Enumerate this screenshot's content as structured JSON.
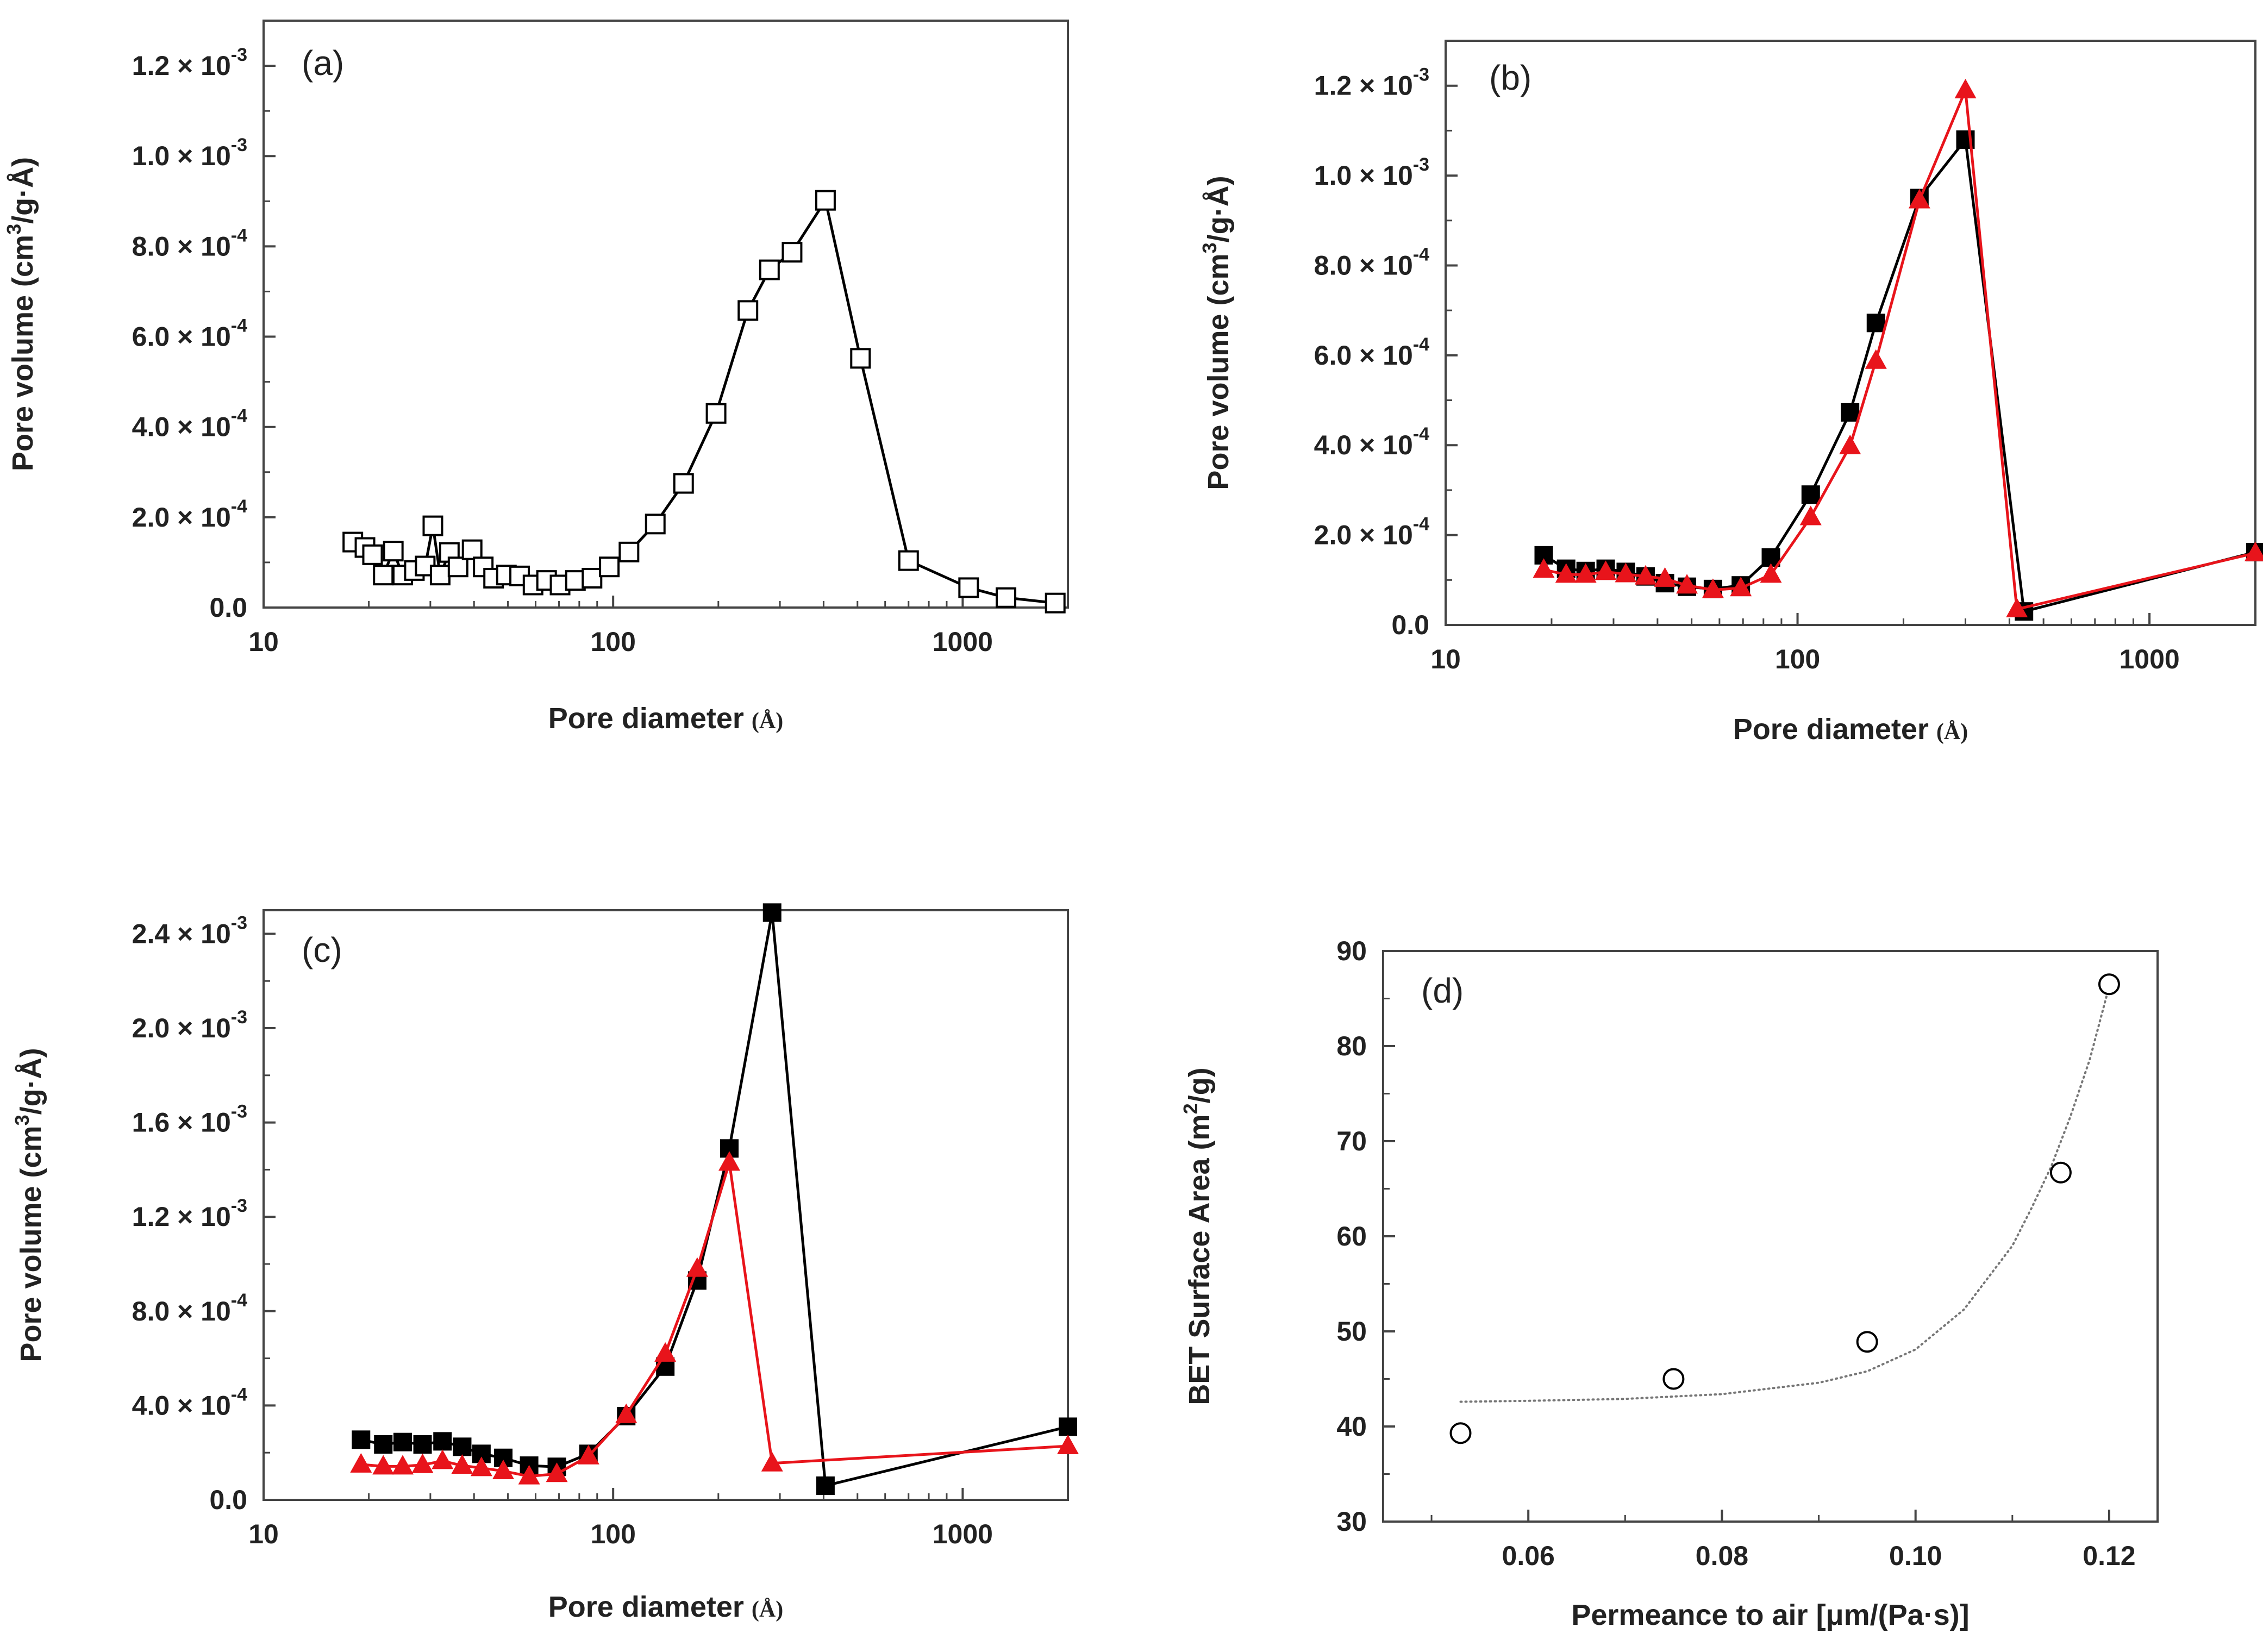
{
  "chart_data": [
    {
      "id": "a",
      "panel_label": "(a)",
      "type": "line",
      "xscale": "log",
      "xlabel": "Pore diameter",
      "xunit": "(Å)",
      "ylabel_pre": "Pore volume (cm",
      "ylabel_sup": "3",
      "ylabel_post": "/g·Å)",
      "xlim": [
        10,
        2000
      ],
      "ylim": [
        0,
        0.0013
      ],
      "xticks": [
        {
          "v": 10,
          "label": "10"
        },
        {
          "v": 100,
          "label": "100"
        },
        {
          "v": 1000,
          "label": "1000"
        }
      ],
      "yticks": [
        {
          "v": 0,
          "mant": "0.0",
          "exp": ""
        },
        {
          "v": 0.0002,
          "mant": "2.0 × 10",
          "exp": "-4"
        },
        {
          "v": 0.0004,
          "mant": "4.0 × 10",
          "exp": "-4"
        },
        {
          "v": 0.0006,
          "mant": "6.0 × 10",
          "exp": "-4"
        },
        {
          "v": 0.0008,
          "mant": "8.0 × 10",
          "exp": "-4"
        },
        {
          "v": 0.001,
          "mant": "1.0 × 10",
          "exp": "-3"
        },
        {
          "v": 0.0012,
          "mant": "1.2 × 10",
          "exp": "-3"
        }
      ],
      "series": [
        {
          "name": "sample",
          "color": "#000000",
          "marker": "square-open",
          "x": [
            18,
            19.5,
            20.5,
            22,
            23.5,
            25,
            27,
            29,
            30.5,
            32,
            34,
            36,
            39.5,
            42.5,
            45.5,
            49.5,
            54,
            59,
            64.5,
            70.5,
            78,
            87,
            97.5,
            111,
            132,
            159,
            197,
            243,
            280,
            325,
            405,
            510,
            700,
            1040,
            1330,
            1840
          ],
          "y": [
            0.000145,
            0.000133,
            0.000117,
            7.2e-05,
            0.000125,
            7.2e-05,
            8.2e-05,
            9.2e-05,
            0.000181,
            7.2e-05,
            0.000122,
            9e-05,
            0.000128,
            9e-05,
            6.5e-05,
            7.2e-05,
            7e-05,
            5e-05,
            6e-05,
            5e-05,
            6e-05,
            6.5e-05,
            9e-05,
            0.000123,
            0.000185,
            0.000275,
            0.00043,
            0.000658,
            0.000748,
            0.000787,
            0.000902,
            0.000552,
            0.000104,
            4.4e-05,
            2.2e-05,
            1e-05
          ]
        }
      ]
    },
    {
      "id": "b",
      "panel_label": "(b)",
      "type": "line",
      "xscale": "log",
      "xlabel": "Pore diameter",
      "xunit": "(Å)",
      "ylabel_pre": "Pore volume (cm",
      "ylabel_sup": "3",
      "ylabel_post": "/g·Å)",
      "xlim": [
        10,
        2000
      ],
      "ylim": [
        0,
        0.0013
      ],
      "xticks": [
        {
          "v": 10,
          "label": "10"
        },
        {
          "v": 100,
          "label": "100"
        },
        {
          "v": 1000,
          "label": "1000"
        }
      ],
      "yticks": [
        {
          "v": 0,
          "mant": "0.0",
          "exp": ""
        },
        {
          "v": 0.0002,
          "mant": "2.0 × 10",
          "exp": "-4"
        },
        {
          "v": 0.0004,
          "mant": "4.0 × 10",
          "exp": "-4"
        },
        {
          "v": 0.0006,
          "mant": "6.0 × 10",
          "exp": "-4"
        },
        {
          "v": 0.0008,
          "mant": "8.0 × 10",
          "exp": "-4"
        },
        {
          "v": 0.001,
          "mant": "1.0 × 10",
          "exp": "-3"
        },
        {
          "v": 0.0012,
          "mant": "1.2 × 10",
          "exp": "-3"
        }
      ],
      "series": [
        {
          "name": "black-squares",
          "color": "#000000",
          "marker": "square",
          "x": [
            19,
            22,
            25,
            28.5,
            32.5,
            37,
            42,
            48.5,
            57.5,
            69,
            84,
            109,
            141,
            167,
            222,
            300,
            440,
            2000
          ],
          "y": [
            0.000155,
            0.000125,
            0.00012,
            0.000125,
            0.000118,
            0.000108,
            9.3e-05,
            8.5e-05,
            8e-05,
            8.8e-05,
            0.00015,
            0.00029,
            0.000473,
            0.000672,
            0.00095,
            0.00108,
            3e-05,
            0.000162
          ]
        },
        {
          "name": "red-triangles",
          "color": "#e8141b",
          "marker": "triangle",
          "x": [
            19,
            22,
            25,
            28.5,
            32.5,
            37,
            42,
            48.5,
            57.5,
            69,
            84,
            109,
            141,
            167,
            222,
            300,
            420,
            2000
          ],
          "y": [
            0.000123,
            0.000112,
            0.000112,
            0.000118,
            0.000113,
            0.000108,
            0.000103,
            8.8e-05,
            7.8e-05,
            8.2e-05,
            0.000112,
            0.00024,
            0.000398,
            0.000588,
            0.000945,
            0.00119,
            3.5e-05,
            0.00016
          ]
        }
      ]
    },
    {
      "id": "c",
      "panel_label": "(c)",
      "type": "line",
      "xscale": "log",
      "xlabel": "Pore diameter",
      "xunit": "(Å)",
      "ylabel_pre": "Pore volume (cm",
      "ylabel_sup": "3",
      "ylabel_post": "/g·Å)",
      "xlim": [
        10,
        2000
      ],
      "ylim": [
        0,
        0.0025
      ],
      "xticks": [
        {
          "v": 10,
          "label": "10"
        },
        {
          "v": 100,
          "label": "100"
        },
        {
          "v": 1000,
          "label": "1000"
        }
      ],
      "yticks": [
        {
          "v": 0,
          "mant": "0.0",
          "exp": ""
        },
        {
          "v": 0.0004,
          "mant": "4.0 × 10",
          "exp": "-4"
        },
        {
          "v": 0.0008,
          "mant": "8.0 × 10",
          "exp": "-4"
        },
        {
          "v": 0.0012,
          "mant": "1.2 × 10",
          "exp": "-3"
        },
        {
          "v": 0.0016,
          "mant": "1.6 × 10",
          "exp": "-3"
        },
        {
          "v": 0.002,
          "mant": "2.0 × 10",
          "exp": "-3"
        },
        {
          "v": 0.0024,
          "mant": "2.4 × 10",
          "exp": "-3"
        }
      ],
      "series": [
        {
          "name": "black-squares",
          "color": "#000000",
          "marker": "square",
          "x": [
            19,
            22,
            25,
            28.5,
            32.5,
            37,
            42,
            48.5,
            57.5,
            69,
            85,
            109,
            141,
            174,
            215,
            285,
            405,
            2000
          ],
          "y": [
            0.000255,
            0.000235,
            0.000245,
            0.000235,
            0.000248,
            0.000225,
            0.000195,
            0.000178,
            0.000145,
            0.00014,
            0.000195,
            0.000355,
            0.000565,
            0.00093,
            0.00149,
            0.00249,
            6e-05,
            0.00031
          ]
        },
        {
          "name": "red-triangles",
          "color": "#e8141b",
          "marker": "triangle",
          "x": [
            19,
            22,
            25,
            28.5,
            32.5,
            37,
            42,
            48.5,
            57.5,
            69,
            85,
            109,
            141,
            174,
            215,
            285,
            2000
          ],
          "y": [
            0.00015,
            0.000142,
            0.000142,
            0.000148,
            0.000165,
            0.000145,
            0.000135,
            0.000122,
            0.0001,
            0.00011,
            0.000185,
            0.00036,
            0.00062,
            0.00098,
            0.00143,
            0.000155,
            0.000228
          ]
        }
      ]
    },
    {
      "id": "d",
      "panel_label": "(d)",
      "type": "scatter",
      "xscale": "linear",
      "xlabel": "Permeance to air [μm/(Pa·s)]",
      "xunit": "",
      "ylabel_pre": "BET Surface Area (m",
      "ylabel_sup": "2",
      "ylabel_post": "/g)",
      "xlim": [
        0.045,
        0.125
      ],
      "ylim": [
        30,
        90
      ],
      "xticks": [
        {
          "v": 0.06,
          "label": "0.06"
        },
        {
          "v": 0.08,
          "label": "0.08"
        },
        {
          "v": 0.1,
          "label": "0.10"
        },
        {
          "v": 0.12,
          "label": "0.12"
        }
      ],
      "yticks": [
        {
          "v": 30,
          "mant": "30",
          "exp": ""
        },
        {
          "v": 40,
          "mant": "40",
          "exp": ""
        },
        {
          "v": 50,
          "mant": "50",
          "exp": ""
        },
        {
          "v": 60,
          "mant": "60",
          "exp": ""
        },
        {
          "v": 70,
          "mant": "70",
          "exp": ""
        },
        {
          "v": 80,
          "mant": "80",
          "exp": ""
        },
        {
          "v": 90,
          "mant": "90",
          "exp": ""
        }
      ],
      "series": [
        {
          "name": "measured",
          "color": "#000000",
          "marker": "circle-open",
          "x": [
            0.053,
            0.075,
            0.095,
            0.115,
            0.12
          ],
          "y": [
            39.3,
            45,
            48.9,
            66.7,
            86.5
          ]
        }
      ],
      "fit": {
        "style": "dotted",
        "color": "#777777",
        "x": [
          0.053,
          0.06,
          0.07,
          0.08,
          0.09,
          0.095,
          0.1,
          0.105,
          0.11,
          0.112,
          0.114,
          0.116,
          0.118,
          0.12
        ],
        "y": [
          42.6,
          42.7,
          42.9,
          43.4,
          44.6,
          45.8,
          48.1,
          52.3,
          59.0,
          63.0,
          67.3,
          72.6,
          78.6,
          86.3
        ]
      }
    }
  ]
}
